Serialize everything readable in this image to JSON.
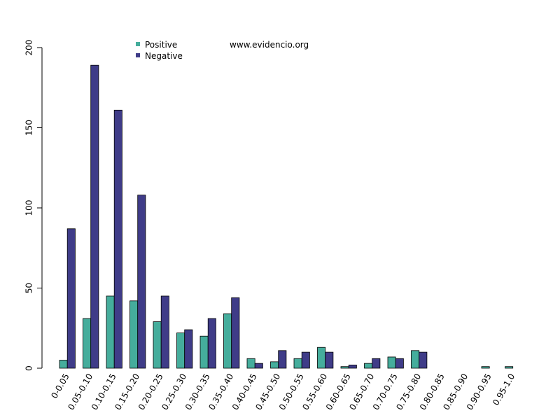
{
  "chart_data": {
    "type": "bar",
    "categories": [
      "0-0.05",
      "0.05-0.10",
      "0.10-0.15",
      "0.15-0.20",
      "0.20-0.25",
      "0.25-0.30",
      "0.30-0.35",
      "0.35-0.40",
      "0.40-0.45",
      "0.45-0.50",
      "0.50-0.55",
      "0.55-0.60",
      "0.60-0.65",
      "0.65-0.70",
      "0.70-0.75",
      "0.75-0.80",
      "0.80-0.85",
      "0.85-0.90",
      "0.90-0.95",
      "0.95-1.0"
    ],
    "series": [
      {
        "name": "Positive",
        "color": "#45ad9c",
        "values": [
          5,
          31,
          45,
          42,
          29,
          22,
          20,
          34,
          6,
          4,
          6,
          13,
          1,
          3,
          7,
          11,
          0,
          0,
          1,
          1
        ]
      },
      {
        "name": "Negative",
        "color": "#3f3c88",
        "values": [
          87,
          189,
          161,
          108,
          45,
          24,
          31,
          44,
          3,
          11,
          10,
          10,
          2,
          6,
          6,
          10,
          0,
          0,
          0,
          0
        ]
      }
    ],
    "ylim": [
      0,
      200
    ],
    "yticks": [
      0,
      50,
      100,
      150,
      200
    ],
    "grid": false,
    "legend_position": "top-left",
    "watermark": "www.evidencio.org"
  }
}
